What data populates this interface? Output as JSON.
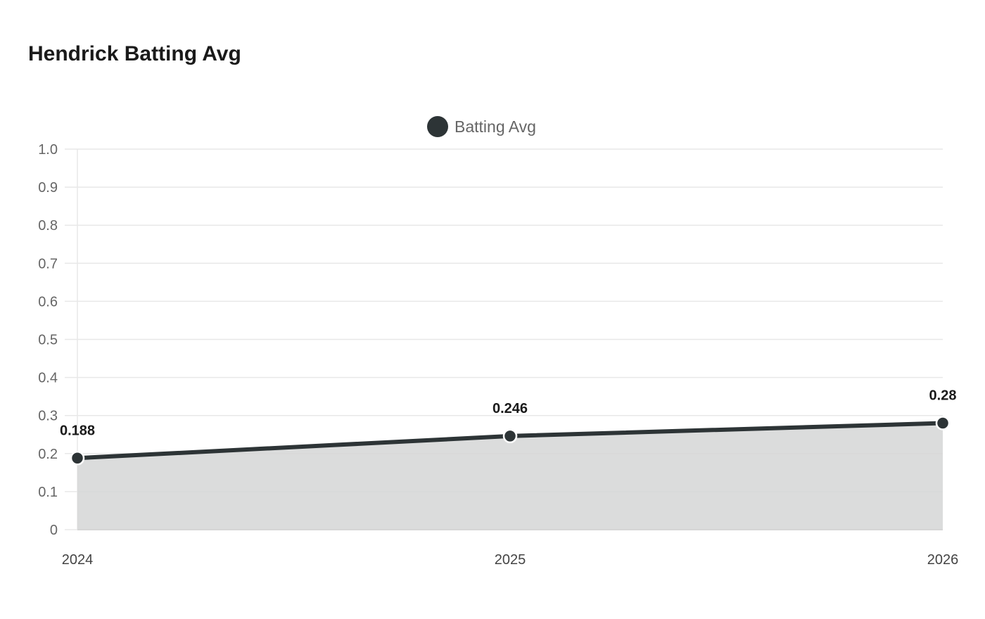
{
  "title": "Hendrick Batting Avg",
  "chart_data": {
    "type": "area",
    "title": "Hendrick Batting Avg",
    "categories": [
      "2024",
      "2025",
      "2026"
    ],
    "series": [
      {
        "name": "Batting Avg",
        "values": [
          0.188,
          0.246,
          0.28
        ]
      }
    ],
    "value_labels": [
      "0.188",
      "0.246",
      "0.28"
    ],
    "ylim": [
      0,
      1.0
    ],
    "yticks": [
      0,
      0.1,
      0.2,
      0.3,
      0.4,
      0.5,
      0.6,
      0.7,
      0.8,
      0.9,
      1.0
    ],
    "ytick_labels": [
      "0",
      "0.1",
      "0.2",
      "0.3",
      "0.4",
      "0.5",
      "0.6",
      "0.7",
      "0.8",
      "0.9",
      "1.0"
    ],
    "xlabel": "",
    "ylabel": "",
    "grid": true,
    "legend_position": "top-center",
    "colors": {
      "line": "#2d3436",
      "fill": "#d5d6d6",
      "grid": "#e8e8e8"
    }
  }
}
